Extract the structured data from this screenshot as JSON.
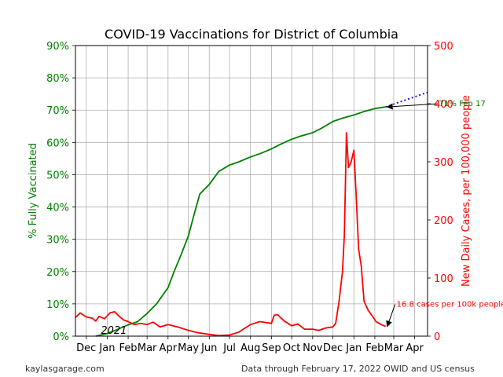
{
  "chart_data": {
    "type": "line",
    "title": "COVID-19 Vaccinations for District of Columbia",
    "left_axis": {
      "label": "% Fully Vaccinated",
      "range": [
        0,
        90
      ],
      "ticks": [
        "0%",
        "10%",
        "20%",
        "30%",
        "40%",
        "50%",
        "60%",
        "70%",
        "80%",
        "90%"
      ],
      "color": "#008000"
    },
    "right_axis": {
      "label": "New Daily Cases, per 100,000 people",
      "range": [
        0,
        500
      ],
      "ticks": [
        "0",
        "100",
        "200",
        "300",
        "400",
        "500"
      ],
      "color": "#ff0000"
    },
    "x_axis": {
      "tick_labels": [
        "Dec",
        "Jan",
        "Feb",
        "Mar",
        "Apr",
        "May",
        "Jun",
        "Jul",
        "Aug",
        "Sep",
        "Oct",
        "Nov",
        "Dec",
        "Jan",
        "Feb",
        "Mar",
        "Apr"
      ],
      "year_label": "2021",
      "range": [
        "2020-11-15",
        "2022-04-20"
      ]
    },
    "grid": true,
    "series": [
      {
        "axis": "left",
        "color": "#008000",
        "points": [
          [
            "2020-12-15",
            0
          ],
          [
            "2021-01-01",
            0.8
          ],
          [
            "2021-01-15",
            2.0
          ],
          [
            "2021-02-01",
            3.5
          ],
          [
            "2021-02-15",
            4.5
          ],
          [
            "2021-03-01",
            7
          ],
          [
            "2021-03-15",
            10
          ],
          [
            "2021-04-01",
            15
          ],
          [
            "2021-04-10",
            20
          ],
          [
            "2021-04-20",
            25
          ],
          [
            "2021-05-01",
            31
          ],
          [
            "2021-05-10",
            38
          ],
          [
            "2021-05-18",
            44
          ],
          [
            "2021-06-01",
            47
          ],
          [
            "2021-06-15",
            51
          ],
          [
            "2021-07-01",
            53
          ],
          [
            "2021-07-15",
            54
          ],
          [
            "2021-08-01",
            55.5
          ],
          [
            "2021-08-15",
            56.5
          ],
          [
            "2021-09-01",
            58
          ],
          [
            "2021-09-15",
            59.5
          ],
          [
            "2021-10-01",
            61
          ],
          [
            "2021-10-15",
            62
          ],
          [
            "2021-11-01",
            63
          ],
          [
            "2021-11-15",
            64.5
          ],
          [
            "2021-12-01",
            66.5
          ],
          [
            "2021-12-15",
            67.5
          ],
          [
            "2022-01-01",
            68.5
          ],
          [
            "2022-01-15",
            69.5
          ],
          [
            "2022-02-01",
            70.5
          ],
          [
            "2022-02-17",
            71
          ]
        ]
      },
      {
        "axis": "left",
        "style": "dotted",
        "color": "#0000ff",
        "points": [
          [
            "2022-02-17",
            71
          ],
          [
            "2022-04-20",
            75.5
          ]
        ]
      },
      {
        "axis": "right",
        "color": "#ff0000",
        "points": [
          [
            "2020-11-15",
            32
          ],
          [
            "2020-11-22",
            40
          ],
          [
            "2020-12-01",
            33
          ],
          [
            "2020-12-10",
            31
          ],
          [
            "2020-12-15",
            26
          ],
          [
            "2020-12-20",
            34
          ],
          [
            "2020-12-28",
            30
          ],
          [
            "2021-01-05",
            40
          ],
          [
            "2021-01-12",
            42
          ],
          [
            "2021-01-18",
            35
          ],
          [
            "2021-01-25",
            28
          ],
          [
            "2021-02-01",
            25
          ],
          [
            "2021-02-10",
            20
          ],
          [
            "2021-02-20",
            22
          ],
          [
            "2021-03-01",
            20
          ],
          [
            "2021-03-10",
            24
          ],
          [
            "2021-03-20",
            16
          ],
          [
            "2021-04-01",
            20
          ],
          [
            "2021-04-15",
            16
          ],
          [
            "2021-05-01",
            10
          ],
          [
            "2021-05-15",
            6
          ],
          [
            "2021-06-01",
            3
          ],
          [
            "2021-06-15",
            1
          ],
          [
            "2021-07-01",
            2
          ],
          [
            "2021-07-15",
            7
          ],
          [
            "2021-08-01",
            20
          ],
          [
            "2021-08-15",
            25
          ],
          [
            "2021-09-01",
            22
          ],
          [
            "2021-09-05",
            36
          ],
          [
            "2021-09-10",
            37
          ],
          [
            "2021-09-20",
            26
          ],
          [
            "2021-10-01",
            18
          ],
          [
            "2021-10-10",
            21
          ],
          [
            "2021-10-20",
            12
          ],
          [
            "2021-11-01",
            12
          ],
          [
            "2021-11-10",
            10
          ],
          [
            "2021-11-20",
            14
          ],
          [
            "2021-12-01",
            16
          ],
          [
            "2021-12-05",
            22
          ],
          [
            "2021-12-10",
            60
          ],
          [
            "2021-12-15",
            110
          ],
          [
            "2021-12-18",
            175
          ],
          [
            "2021-12-21",
            350
          ],
          [
            "2021-12-24",
            290
          ],
          [
            "2021-12-28",
            300
          ],
          [
            "2022-01-01",
            320
          ],
          [
            "2022-01-04",
            250
          ],
          [
            "2022-01-08",
            150
          ],
          [
            "2022-01-12",
            120
          ],
          [
            "2022-01-16",
            60
          ],
          [
            "2022-01-22",
            45
          ],
          [
            "2022-01-28",
            35
          ],
          [
            "2022-02-03",
            25
          ],
          [
            "2022-02-10",
            20
          ],
          [
            "2022-02-17",
            16.8
          ]
        ]
      }
    ],
    "annotations": [
      {
        "text": "71% Feb 17",
        "color": "#008000",
        "axis": "left",
        "point": [
          "2022-02-17",
          71
        ]
      },
      {
        "text": "16.8 cases per 100k people",
        "color": "#ff0000",
        "axis": "right",
        "point": [
          "2022-02-17",
          16.8
        ]
      }
    ]
  },
  "footer": {
    "left": "kaylasgarage.com",
    "right": "Data through February 17, 2022 OWID and US census"
  }
}
